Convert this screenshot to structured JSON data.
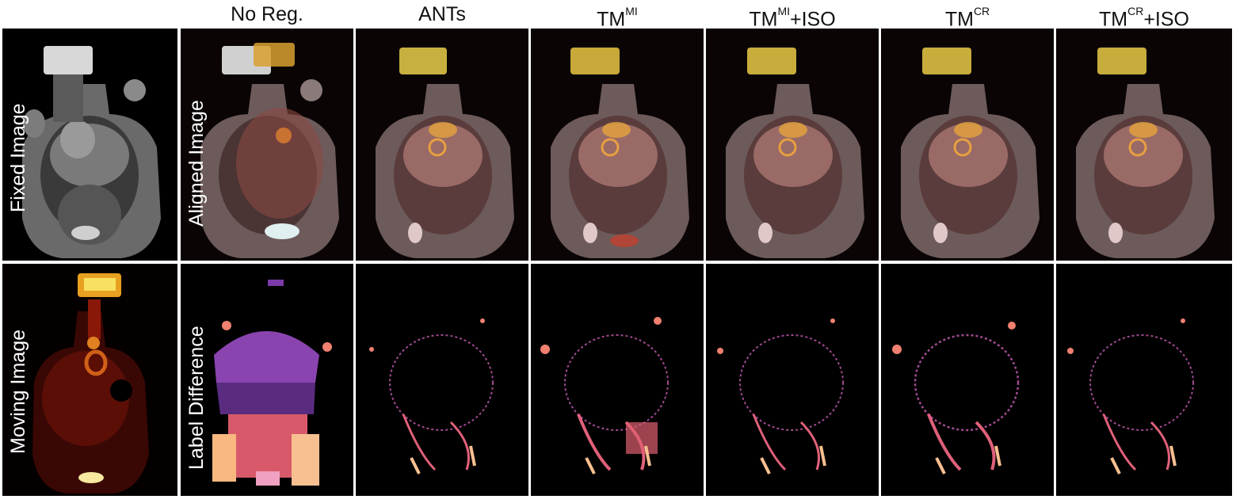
{
  "headers": [
    {
      "base": "No Reg.",
      "sup": "",
      "suffix": ""
    },
    {
      "base": "ANTs",
      "sup": "",
      "suffix": ""
    },
    {
      "base": "TM",
      "sup": "MI",
      "suffix": ""
    },
    {
      "base": "TM",
      "sup": "MI",
      "suffix": "+ISO"
    },
    {
      "base": "TM",
      "sup": "CR",
      "suffix": ""
    },
    {
      "base": "TM",
      "sup": "CR",
      "suffix": "+ISO"
    }
  ],
  "row_labels": {
    "fixed": "Fixed Image",
    "aligned": "Aligned Image",
    "moving": "Moving Image",
    "label_diff": "Label Difference"
  },
  "colors": {
    "ct_gray": "#9a9a9a",
    "pet_hot": "#f0e040",
    "pet_red": "#a01810",
    "diff_purple": "#7a3aa8",
    "diff_salmon": "#f07070",
    "diff_peach": "#f8c090"
  }
}
